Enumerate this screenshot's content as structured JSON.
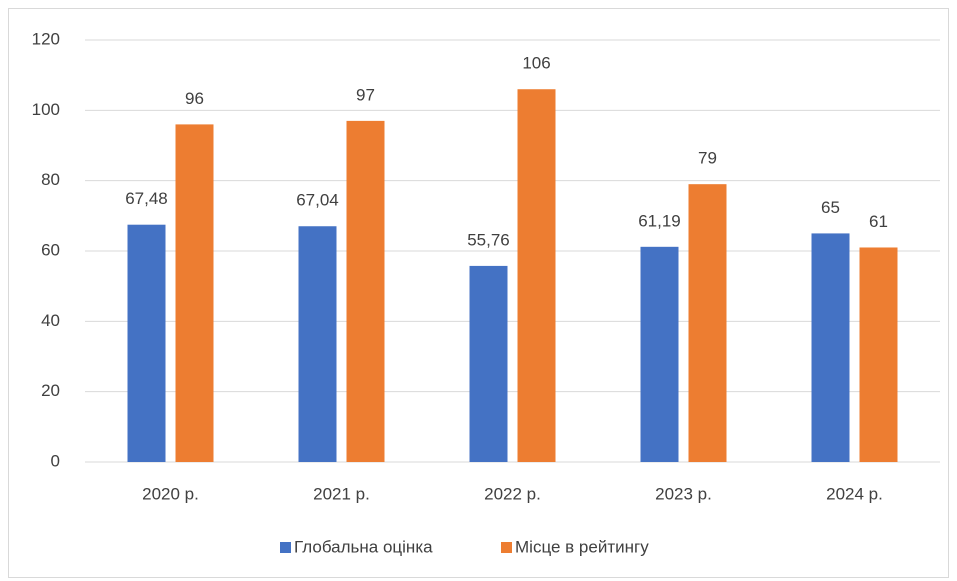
{
  "chart_data": {
    "type": "bar",
    "categories": [
      "2020 р.",
      "2021 р.",
      "2022 р.",
      "2023 р.",
      "2024 р."
    ],
    "series": [
      {
        "name": "Глобальна оцінка",
        "color": "#4472c4",
        "values": [
          67.48,
          67.04,
          55.76,
          61.19,
          65
        ],
        "value_labels": [
          "67,48",
          "67,04",
          "55,76",
          "61,19",
          "65"
        ]
      },
      {
        "name": "Місце в рейтингу",
        "color": "#ed7d31",
        "values": [
          96,
          97,
          106,
          79,
          61
        ]
      }
    ],
    "ylim": [
      0,
      120
    ],
    "yticks": [
      0,
      20,
      40,
      60,
      80,
      100,
      120
    ],
    "grid": true,
    "legend": "bottom"
  }
}
